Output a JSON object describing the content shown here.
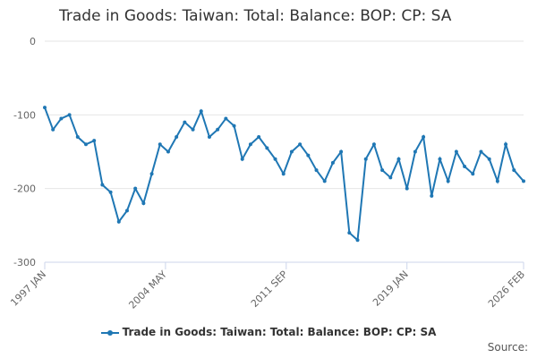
{
  "chart_data": {
    "type": "line",
    "title": "Trade in Goods: Taiwan: Total: Balance: BOP: CP: SA",
    "xlabel": "",
    "ylabel": "",
    "x_tick_labels": [
      "1997 JAN",
      "2004 MAY",
      "2011 SEP",
      "2019 JAN",
      "2026 FEB"
    ],
    "y_tick_labels": [
      "0",
      "-100",
      "-200",
      "-300"
    ],
    "xlim": [
      "1997-01",
      "2026-02"
    ],
    "ylim": [
      -300,
      0
    ],
    "grid": "horizontal",
    "legend_position": "bottom-center",
    "color": "#1f77b4",
    "series": [
      {
        "name": "Trade in Goods: Taiwan: Total: Balance: BOP: CP: SA",
        "x": [
          "1997-01",
          "1997-07",
          "1998-01",
          "1998-07",
          "1999-01",
          "1999-07",
          "2000-01",
          "2000-07",
          "2001-01",
          "2001-07",
          "2002-01",
          "2002-07",
          "2003-01",
          "2003-07",
          "2004-01",
          "2004-07",
          "2005-01",
          "2005-07",
          "2006-01",
          "2006-07",
          "2007-01",
          "2007-07",
          "2008-01",
          "2008-07",
          "2009-01",
          "2009-07",
          "2010-01",
          "2010-07",
          "2011-01",
          "2011-07",
          "2012-01",
          "2012-07",
          "2013-01",
          "2013-07",
          "2014-01",
          "2014-07",
          "2015-01",
          "2015-07",
          "2016-01",
          "2016-07",
          "2017-01",
          "2017-07",
          "2018-01",
          "2018-07",
          "2019-01",
          "2019-07",
          "2020-01",
          "2020-07",
          "2021-01",
          "2021-07",
          "2022-01",
          "2022-07",
          "2023-01",
          "2023-07",
          "2024-01",
          "2024-07",
          "2025-01",
          "2025-07",
          "2026-02"
        ],
        "values": [
          -90,
          -120,
          -105,
          -100,
          -130,
          -140,
          -135,
          -195,
          -205,
          -245,
          -230,
          -200,
          -220,
          -180,
          -140,
          -150,
          -130,
          -110,
          -120,
          -95,
          -130,
          -120,
          -105,
          -115,
          -160,
          -140,
          -130,
          -145,
          -160,
          -180,
          -150,
          -140,
          -155,
          -175,
          -190,
          -165,
          -150,
          -260,
          -270,
          -160,
          -140,
          -175,
          -185,
          -160,
          -200,
          -150,
          -130,
          -210,
          -160,
          -190,
          -150,
          -170,
          -180,
          -150,
          -160,
          -190,
          -140,
          -175,
          -190
        ],
        "values_note_unused": null
      }
    ],
    "source_label": "Source:"
  }
}
